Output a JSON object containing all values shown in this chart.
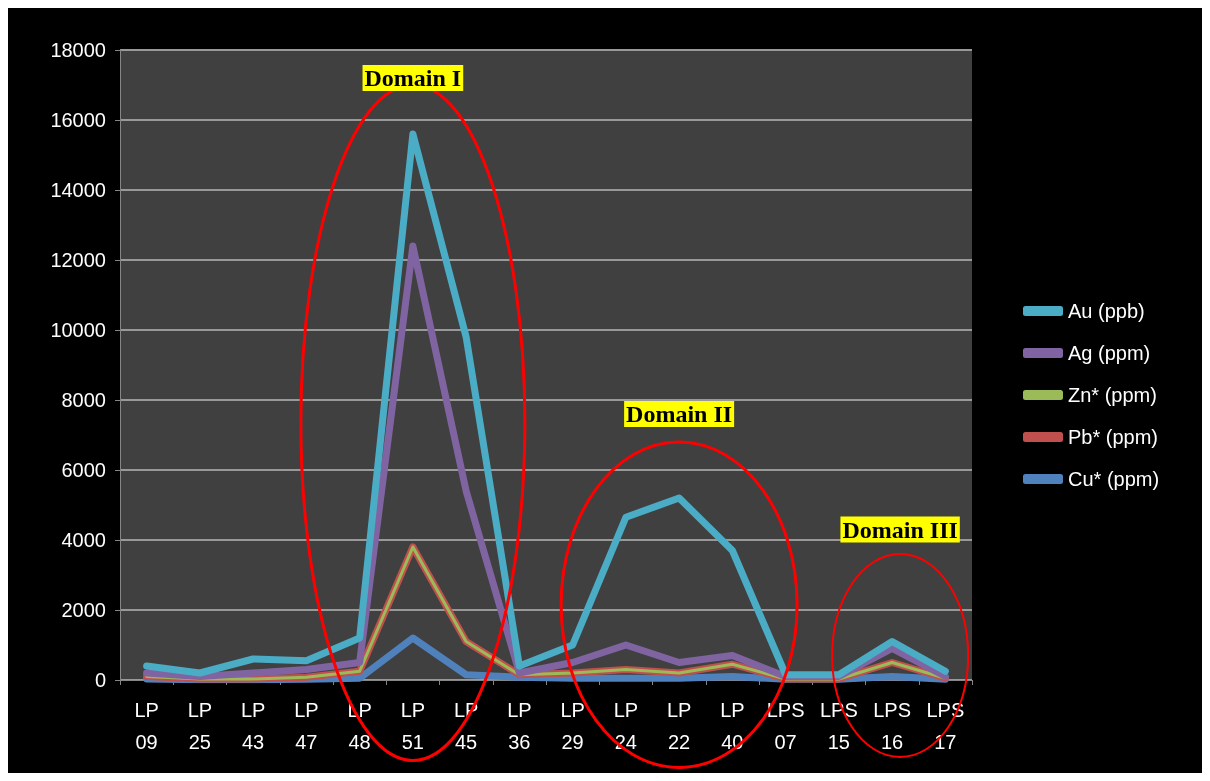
{
  "chart_data": {
    "type": "line",
    "categories": [
      "LP 09",
      "LP 25",
      "LP 43",
      "LP 47",
      "LP 48",
      "LP 51",
      "LP 45",
      "LP 36",
      "LP 29",
      "LP 24",
      "LP 22",
      "LP 40",
      "LPS 07",
      "LPS 15",
      "LPS 16",
      "LPS 17"
    ],
    "series": [
      {
        "name": "Au (ppb)",
        "color": "#4bacc6",
        "values": [
          400,
          200,
          600,
          550,
          1200,
          15600,
          9800,
          400,
          1000,
          4650,
          5200,
          3700,
          150,
          150,
          1100,
          250
        ]
      },
      {
        "name": "Ag (ppm)",
        "color": "#8064a2",
        "values": [
          200,
          100,
          200,
          300,
          500,
          12400,
          5400,
          200,
          500,
          1000,
          500,
          700,
          100,
          100,
          900,
          100
        ]
      },
      {
        "name": "Zn* (ppm)",
        "color": "#9bbb59",
        "values": [
          100,
          30,
          30,
          80,
          250,
          3800,
          1100,
          150,
          200,
          300,
          200,
          450,
          30,
          30,
          500,
          50
        ]
      },
      {
        "name": "Pb* (ppm)",
        "color": "#c0504d",
        "values": [
          100,
          30,
          30,
          80,
          250,
          3800,
          1100,
          150,
          200,
          300,
          200,
          450,
          30,
          30,
          500,
          50
        ]
      },
      {
        "name": "Cu* (ppm)",
        "color": "#4f81bd",
        "values": [
          30,
          10,
          10,
          20,
          50,
          1200,
          150,
          80,
          50,
          50,
          50,
          100,
          20,
          20,
          100,
          20
        ]
      }
    ],
    "ylim": [
      0,
      18000
    ],
    "yticks": [
      0,
      2000,
      4000,
      6000,
      8000,
      10000,
      12000,
      14000,
      16000,
      18000
    ],
    "grid": "y",
    "legend": "right",
    "marker": "none",
    "line_style": "solid",
    "annotations": [
      "Domain I",
      "Domain II",
      "Domain III"
    ]
  }
}
